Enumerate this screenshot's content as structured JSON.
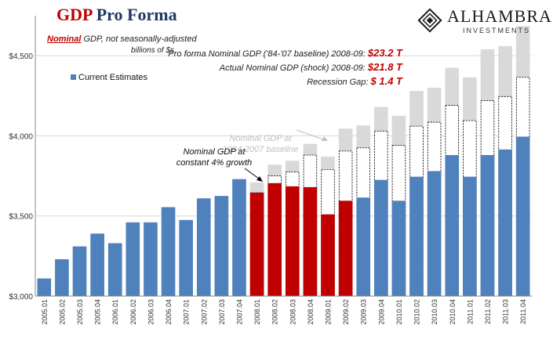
{
  "header": {
    "title_gdp": "GDP",
    "title_rest": "Pro Forma",
    "subtitle_nominal": "Nominal",
    "subtitle_rest": " GDP, not seasonally-adjusted",
    "units": "billions of $s",
    "stats": [
      {
        "label": "Pro forma Nominal GDP ('84-'07 baseline) 2008-09:",
        "value": "$23.2 T"
      },
      {
        "label": "Actual Nominal GDP (shock) 2008-09:",
        "value": "$21.8 T"
      },
      {
        "label": "Recession Gap:",
        "value": "$  1.4 T"
      }
    ]
  },
  "logo": {
    "name": "ALHAMBRA",
    "sub": "INVESTMENTS"
  },
  "chart_data": {
    "type": "bar",
    "categories": [
      "2005.01",
      "2005.02",
      "2005.03",
      "2005.04",
      "2006.01",
      "2006.02",
      "2006.03",
      "2006.04",
      "2007.01",
      "2007.02",
      "2007.03",
      "2007.04",
      "2008.01",
      "2008.02",
      "2008.03",
      "2008.04",
      "2009.01",
      "2009.02",
      "2009.03",
      "2009.04",
      "2010.01",
      "2010.02",
      "2010.03",
      "2010.04",
      "2011.01",
      "2011.02",
      "2011.03",
      "2011.04"
    ],
    "series": [
      {
        "name": "Current Estimates",
        "values": [
          3110,
          3230,
          3310,
          3390,
          3330,
          3460,
          3460,
          3555,
          3475,
          3610,
          3625,
          3730,
          3645,
          3705,
          3685,
          3680,
          3510,
          3595,
          3615,
          3725,
          3595,
          3745,
          3780,
          3880,
          3745,
          3880,
          3915,
          3995
        ]
      },
      {
        "values": [
          null,
          null,
          null,
          null,
          null,
          null,
          null,
          null,
          null,
          null,
          null,
          null,
          3645,
          3750,
          3775,
          3880,
          3790,
          3905,
          3925,
          4030,
          3940,
          4060,
          4085,
          4190,
          4095,
          4220,
          4245,
          4365
        ]
      },
      {
        "values": [
          null,
          null,
          null,
          null,
          null,
          null,
          null,
          null,
          null,
          null,
          null,
          null,
          3710,
          3820,
          3845,
          3950,
          3870,
          4045,
          4065,
          4180,
          4125,
          4280,
          4300,
          4425,
          4365,
          4540,
          4560,
          4685
        ]
      }
    ],
    "highlight_categories": [
      "2008.01",
      "2008.02",
      "2008.03",
      "2008.04",
      "2009.01",
      "2009.02"
    ],
    "ylim": [
      3000,
      4750
    ],
    "yticks": [
      {
        "value": 3000,
        "label": "$3,000"
      },
      {
        "value": 3500,
        "label": "$3,500"
      },
      {
        "value": 4000,
        "label": "$4,000"
      },
      {
        "value": 4500,
        "label": "$4,500"
      }
    ],
    "annotations": [
      {
        "line1": "Nominal GDP at",
        "line2": "1984-2007 baseline"
      },
      {
        "line1": "Nominal GDP at",
        "line2": "constant 4% growth"
      }
    ],
    "legend": "top-left",
    "colors": {
      "current": "#4f81bd",
      "recession": "#c00000",
      "baseline": "#d9d9d9",
      "growth": "#ffffff",
      "title_red": "#c00000",
      "title_navy": "#1f3864"
    }
  }
}
